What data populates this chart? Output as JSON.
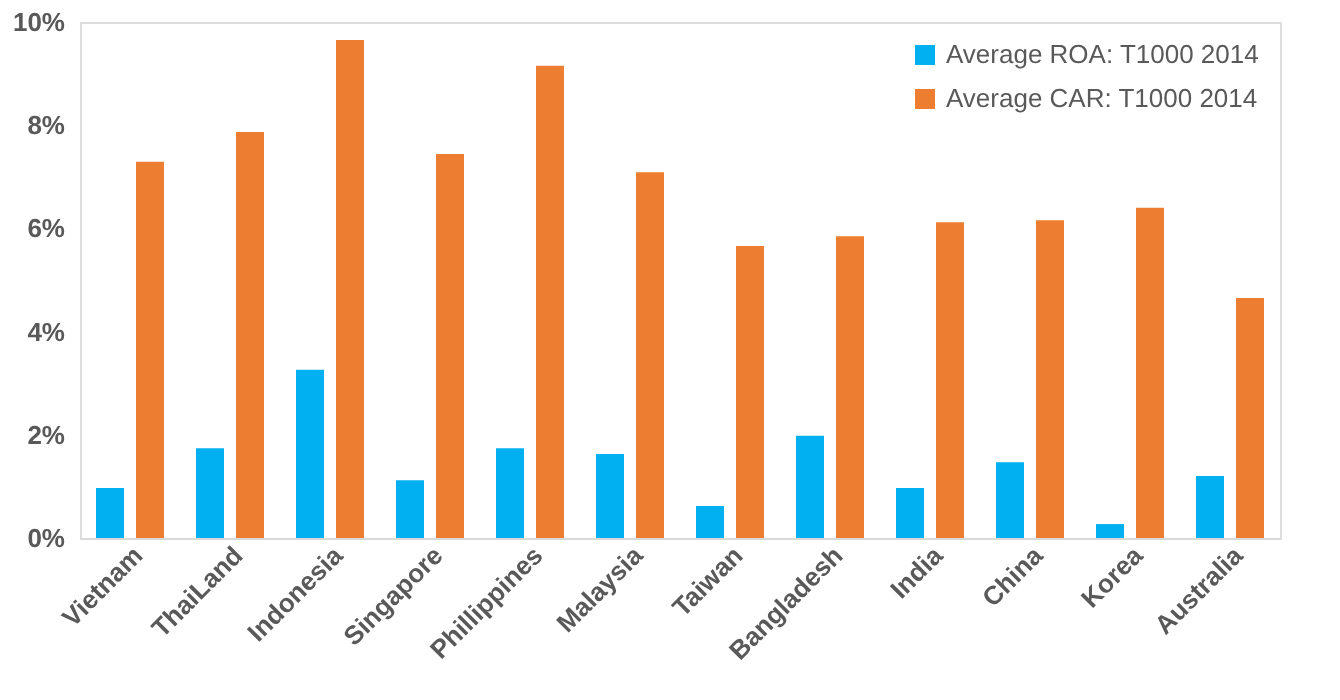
{
  "chart_data": {
    "type": "bar",
    "categories": [
      "Vietnam",
      "ThaiLand",
      "Indonesia",
      "Singapore",
      "Phillippines",
      "Malaysia",
      "Taiwan",
      "Bangladesh",
      "India",
      "China",
      "Korea",
      "Australia"
    ],
    "series": [
      {
        "name": "Average ROA: T1000 2014",
        "color": "#00b0f0",
        "values": [
          0.97,
          1.74,
          3.26,
          1.12,
          1.74,
          1.63,
          0.62,
          1.98,
          0.97,
          1.47,
          0.27,
          1.2
        ]
      },
      {
        "name": "Average CAR: T1000 2014",
        "color": "#ed7d31",
        "values": [
          7.29,
          7.87,
          9.65,
          7.44,
          9.15,
          7.09,
          5.66,
          5.85,
          6.12,
          6.16,
          6.4,
          4.65
        ]
      }
    ],
    "ylim": [
      0,
      10
    ],
    "yticks": [
      {
        "value": 0,
        "label": "0%"
      },
      {
        "value": 2,
        "label": "2%"
      },
      {
        "value": 4,
        "label": "4%"
      },
      {
        "value": 6,
        "label": "6%"
      },
      {
        "value": 8,
        "label": "8%"
      },
      {
        "value": 10,
        "label": "10%"
      }
    ],
    "grid": false,
    "legend": "top right"
  }
}
